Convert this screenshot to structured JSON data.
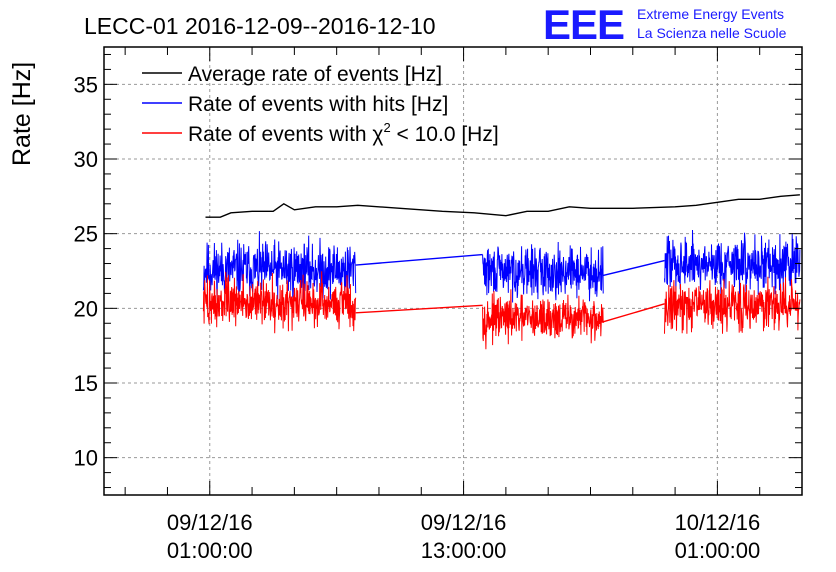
{
  "header": {
    "title": "LECC-01 2016-12-09--2016-12-10",
    "logo_text": "EEE",
    "logo_line1": "Extreme Energy Events",
    "logo_line2": "La Scienza nelle Scuole"
  },
  "colors": {
    "average": "#000000",
    "hits": "#0000ff",
    "chi2": "#ff0000",
    "logo": "#1a1aff",
    "grid": "#9a9a9a"
  },
  "chart_data": {
    "type": "line",
    "title": "LECC-01 2016-12-09--2016-12-10",
    "xlabel": "",
    "ylabel": "Rate [Hz]",
    "ylim": [
      7.5,
      37.5
    ],
    "xlim_hours": [
      -5,
      28
    ],
    "grid": true,
    "legend_position": "top-left",
    "x_unit": "hours since 09/12/16 01:00:00",
    "yticks": [
      10,
      15,
      20,
      25,
      30,
      35
    ],
    "xticks": [
      {
        "x": 0,
        "date": "09/12/16",
        "time": "01:00:00"
      },
      {
        "x": 12,
        "date": "09/12/16",
        "time": "13:00:00"
      },
      {
        "x": 24,
        "date": "10/12/16",
        "time": "01:00:00"
      }
    ],
    "series": [
      {
        "name": "Average rate of events [Hz]",
        "key": "average",
        "x": [
          -0.2,
          0.5,
          1.0,
          2.0,
          3.0,
          3.5,
          4.0,
          5.0,
          6.0,
          7.0,
          9.0,
          10.0,
          11.0,
          12.5,
          14.0,
          15.0,
          16.0,
          17.0,
          18.0,
          19.0,
          20.0,
          22.0,
          23.0,
          24.0,
          25.0,
          26.0,
          27.0,
          27.9
        ],
        "y": [
          26.1,
          26.1,
          26.4,
          26.5,
          26.5,
          27.0,
          26.6,
          26.8,
          26.8,
          26.9,
          26.7,
          26.6,
          26.5,
          26.4,
          26.2,
          26.5,
          26.5,
          26.8,
          26.7,
          26.7,
          26.7,
          26.8,
          26.9,
          27.1,
          27.3,
          27.3,
          27.5,
          27.6
        ]
      },
      {
        "name": "Rate of events with hits [Hz]",
        "key": "hits",
        "segments": [
          {
            "x0": -0.3,
            "x1": 6.9,
            "mean": 22.6,
            "spread": 0.9,
            "start": 21.2,
            "seed": 11
          },
          {
            "x0": 12.9,
            "x1": 18.6,
            "mean": 22.5,
            "spread": 0.8,
            "start": 23.6,
            "seed": 29
          },
          {
            "x0": 21.5,
            "x1": 27.9,
            "mean": 23.0,
            "spread": 0.9,
            "start": 22.0,
            "seed": 47
          }
        ],
        "links": [
          [
            6.9,
            22.9,
            12.9,
            23.6
          ],
          [
            18.6,
            22.2,
            21.5,
            23.2
          ]
        ]
      },
      {
        "name": "Rate of events with χ² < 10.0 [Hz]",
        "key": "chi2",
        "segments": [
          {
            "x0": -0.3,
            "x1": 6.9,
            "mean": 20.4,
            "spread": 0.8,
            "start": 19.8,
            "seed": 73
          },
          {
            "x0": 12.9,
            "x1": 18.6,
            "mean": 19.3,
            "spread": 0.7,
            "start": 20.1,
            "seed": 97
          },
          {
            "x0": 21.5,
            "x1": 27.9,
            "mean": 20.2,
            "spread": 0.8,
            "start": 18.3,
            "seed": 131
          }
        ],
        "links": [
          [
            6.9,
            19.7,
            12.9,
            20.2
          ],
          [
            18.6,
            19.1,
            21.5,
            20.3
          ]
        ]
      }
    ],
    "legend": [
      {
        "key": "average",
        "label": "Average rate of events [Hz]"
      },
      {
        "key": "hits",
        "label": "Rate of events with hits [Hz]"
      },
      {
        "key": "chi2",
        "label_pre": "Rate of events with χ",
        "label_sup": "2",
        "label_post": " < 10.0 [Hz]"
      }
    ]
  }
}
